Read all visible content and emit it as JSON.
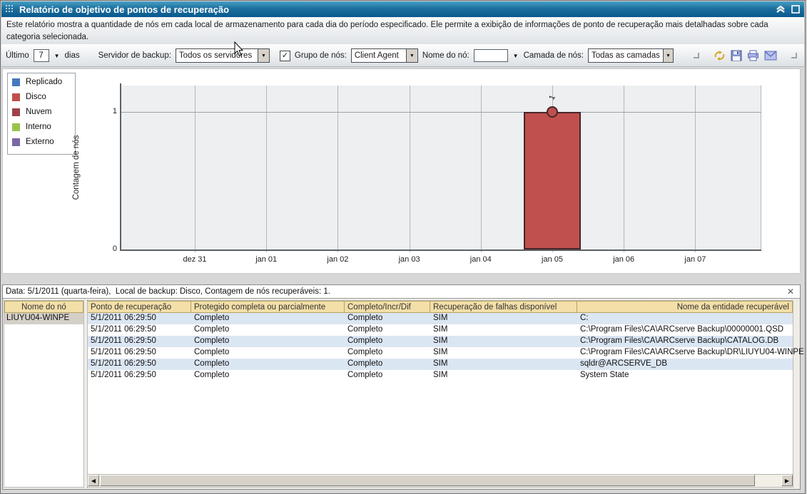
{
  "window": {
    "title": "Relatório de objetivo de pontos de recuperação",
    "description": "Este relatório mostra a quantidade de nós em cada local de armazenamento para cada dia do período especificado. Ele permite a exibição de informações de ponto de recuperação mais detalhadas sobre cada categoria selecionada.",
    "controls": {
      "collapse": "collapse-up-icon",
      "maximize": "maximize-icon"
    },
    "title_icon": "grid-handle-icon",
    "title_bar_color": "#0e639a"
  },
  "toolbar": {
    "last_label": "Último",
    "days_value": "7",
    "days_label": "dias",
    "backup_server_label": "Servidor de backup:",
    "backup_server_value": "Todos os servidores",
    "node_group_checked": true,
    "node_group_label": "Grupo de nós:",
    "node_group_value": "Client Agent",
    "node_name_label": "Nome do nó:",
    "node_name_value": "",
    "node_tier_label": "Camada de nós:",
    "node_tier_value": "Todas as camadas",
    "icons": [
      "refresh-icon",
      "save-icon",
      "print-icon",
      "email-icon"
    ]
  },
  "chart_data": {
    "type": "bar",
    "title": "",
    "xlabel": "",
    "ylabel": "Contagem de nós",
    "categories": [
      "dez 31",
      "jan 01",
      "jan 02",
      "jan 03",
      "jan 04",
      "jan 05",
      "jan 06",
      "jan 07"
    ],
    "series": [
      {
        "name": "Replicado",
        "color": "#4379bd",
        "values": [
          0,
          0,
          0,
          0,
          0,
          0,
          0,
          0
        ]
      },
      {
        "name": "Disco",
        "color": "#c0504d",
        "values": [
          0,
          0,
          0,
          0,
          0,
          1,
          0,
          0
        ]
      },
      {
        "name": "Nuvem",
        "color": "#9c4349",
        "values": [
          0,
          0,
          0,
          0,
          0,
          0,
          0,
          0
        ]
      },
      {
        "name": "Interno",
        "color": "#9bc24d",
        "values": [
          0,
          0,
          0,
          0,
          0,
          0,
          0,
          0
        ]
      },
      {
        "name": "Externo",
        "color": "#7a66a8",
        "values": [
          0,
          0,
          0,
          0,
          0,
          0,
          0,
          0
        ]
      }
    ],
    "yticks": [
      0,
      1
    ],
    "ylim": [
      0,
      1.19
    ],
    "grid": true,
    "legend_position": "top-left",
    "point_labels": {
      "series": "Disco",
      "category": "jan 05",
      "label": "1"
    }
  },
  "detail": {
    "status": "Data: 5/1/2011 (quarta-feira),  Local de backup: Disco, Contagem de nós recuperáveis: 1.",
    "close_icon": "close-icon",
    "node_header": "Nome do nó",
    "node_rows": [
      "LIUYU04-WINPE"
    ],
    "table": {
      "headers": [
        "Ponto de recuperação",
        "Protegido completa ou parcialmente",
        "Completo/Incr/Dif",
        "Recuperação de falhas disponível",
        "Nome da entidade recuperável"
      ],
      "rows": [
        [
          "5/1/2011 06:29:50",
          "Completo",
          "Completo",
          "SIM",
          "C:"
        ],
        [
          "5/1/2011 06:29:50",
          "Completo",
          "Completo",
          "SIM",
          "C:\\Program Files\\CA\\ARCserve Backup\\00000001.QSD"
        ],
        [
          "5/1/2011 06:29:50",
          "Completo",
          "Completo",
          "SIM",
          "C:\\Program Files\\CA\\ARCserve Backup\\CATALOG.DB"
        ],
        [
          "5/1/2011 06:29:50",
          "Completo",
          "Completo",
          "SIM",
          "C:\\Program Files\\CA\\ARCserve Backup\\DR\\LIUYU04-WINPE"
        ],
        [
          "5/1/2011 06:29:50",
          "Completo",
          "Completo",
          "SIM",
          "sqldr@ARCSERVE_DB"
        ],
        [
          "5/1/2011 06:29:50",
          "Completo",
          "Completo",
          "SIM",
          "System State"
        ]
      ],
      "header_bg": "#f3dfa8",
      "row_alt_bg": "#dbe6f3"
    }
  }
}
